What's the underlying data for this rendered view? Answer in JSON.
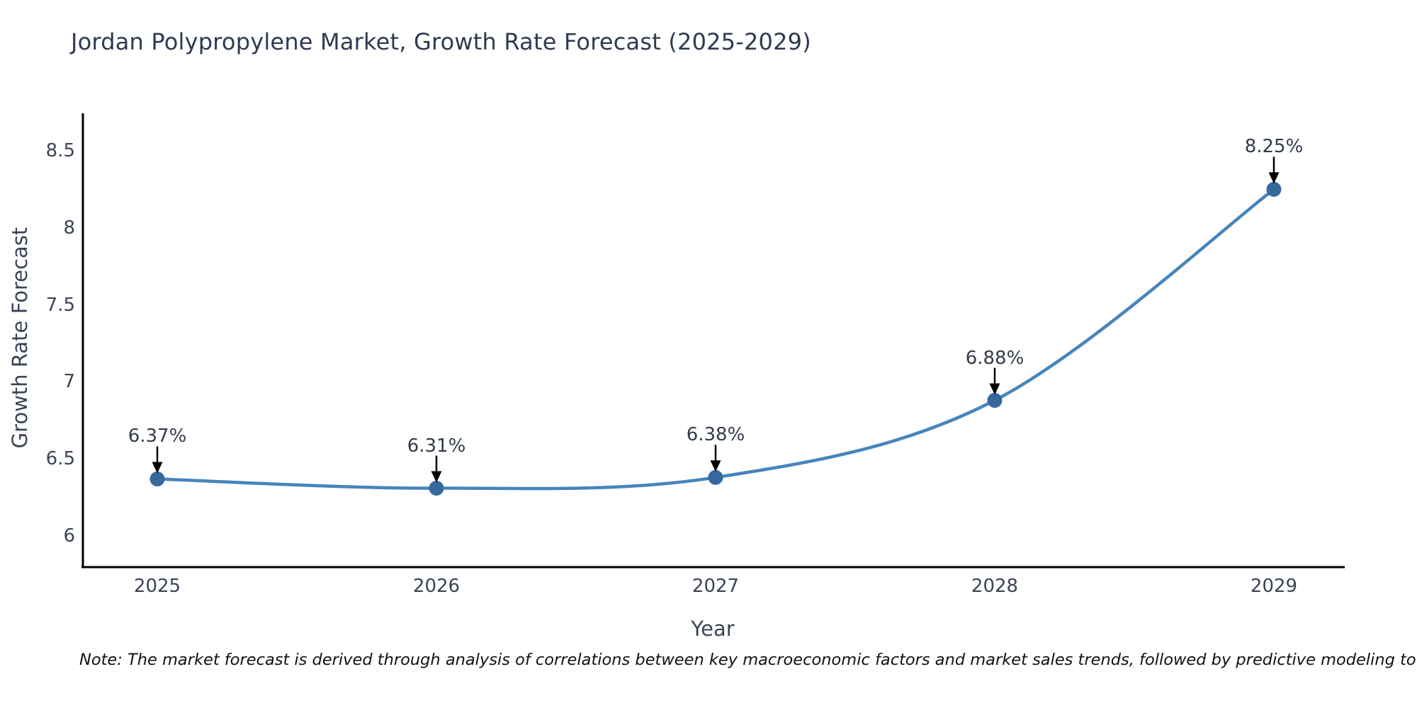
{
  "chart": {
    "title": "Jordan Polypropylene Market, Growth Rate Forecast (2025-2029)",
    "xlabel": "Year",
    "ylabel": "Growth Rate Forecast",
    "note": "Note: The market forecast is derived through analysis of correlations between key macroeconomic factors and market sales trends, followed by predictive modeling to project future sales"
  },
  "chart_data": {
    "type": "line",
    "title": "Jordan Polypropylene Market, Growth Rate Forecast (2025-2029)",
    "xlabel": "Year",
    "ylabel": "Growth Rate Forecast",
    "x": [
      2025,
      2026,
      2027,
      2028,
      2029
    ],
    "series": [
      {
        "name": "Growth Rate Forecast",
        "values": [
          6.37,
          6.31,
          6.38,
          6.88,
          8.25
        ]
      }
    ],
    "point_labels": [
      "6.37%",
      "6.31%",
      "6.38%",
      "6.88%",
      "8.25%"
    ],
    "y_ticks": [
      6,
      6.5,
      7,
      7.5,
      8,
      8.5
    ],
    "x_ticks": [
      2025,
      2026,
      2027,
      2028,
      2029
    ],
    "ylim": [
      5.8,
      8.75
    ],
    "xlim": [
      2024.73,
      2029.25
    ],
    "grid": false,
    "legend_position": "none",
    "line_smoothing": "spline",
    "colors": {
      "line": "#4685bd",
      "marker": "#35699e",
      "arrow": "#000000",
      "axis": "#000000",
      "tick_text": "#3b4455",
      "title_text": "#2e3a52"
    }
  }
}
